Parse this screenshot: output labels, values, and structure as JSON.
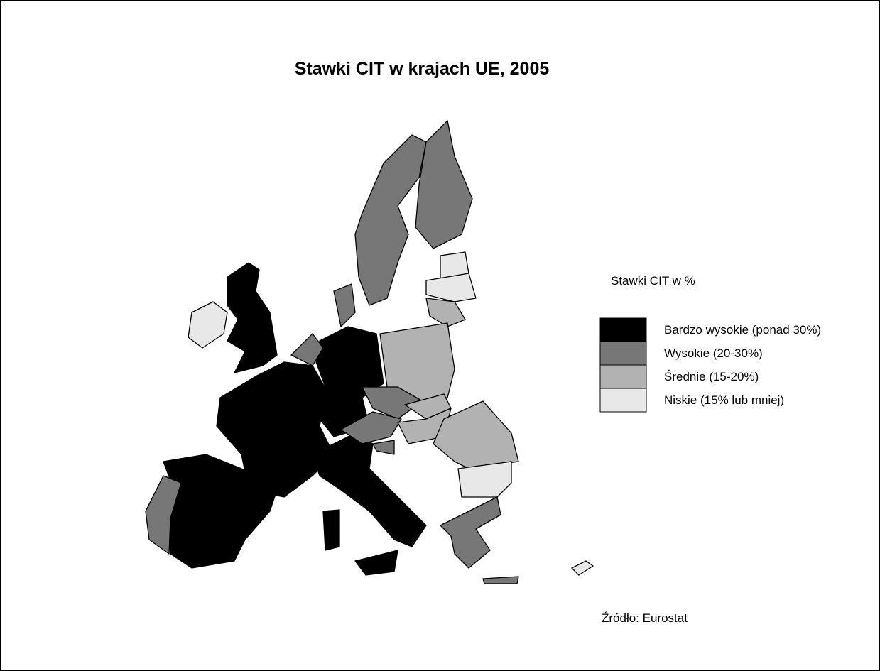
{
  "title": "Stawki CIT w krajach UE, 2005",
  "legend": {
    "title": "Stawki CIT w %",
    "items": [
      {
        "label": "Bardzo wysokie (ponad 30%)",
        "color": "#000000"
      },
      {
        "label": "Wysokie (20-30%)",
        "color": "#777777"
      },
      {
        "label": "Średnie (15-20%)",
        "color": "#b2b2b2"
      },
      {
        "label": "Niskie (15% lub mniej)",
        "color": "#e8e8e8"
      }
    ]
  },
  "source": "Źródło: Eurostat"
}
